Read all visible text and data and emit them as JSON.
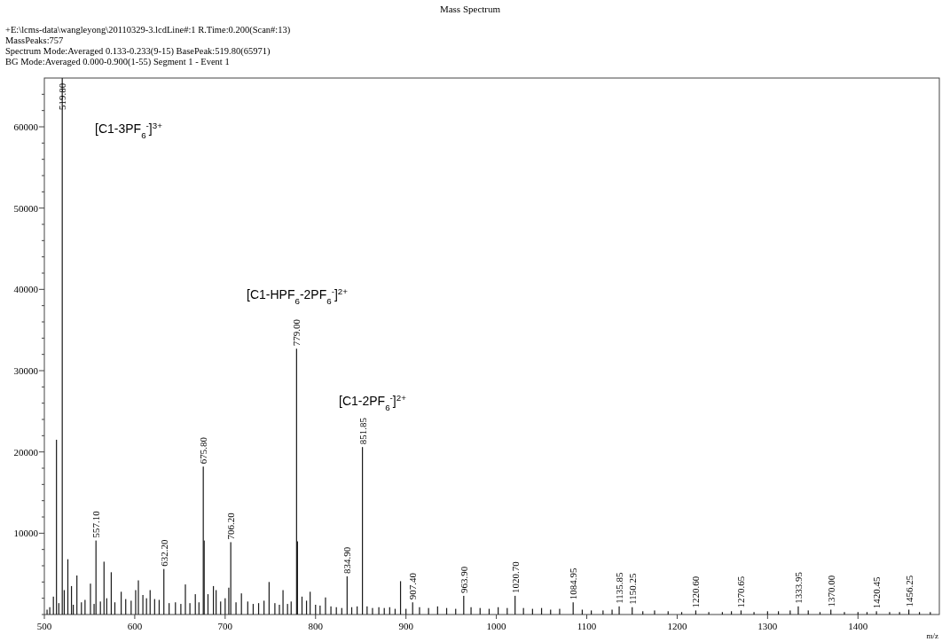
{
  "chart_data": {
    "type": "bar",
    "title": "Mass Spectrum",
    "xlabel": "m/z",
    "annotations": [
      "+E:\\lcms-data\\wangleyong\\20110329-3.lcdLine#:1   R.Time:0.200(Scan#:13)",
      "MassPeaks:757",
      "Spectrum Mode:Averaged 0.133-0.233(9-15)  BasePeak:519.80(65971)",
      "BG Mode:Averaged 0.000-0.900(1-55) Segment 1 - Event 1",
      "[C1-3PF$_{6}$$^{-}$]$^{3+}$",
      "[C1-HPF$_{6}$-2PF$_{6}$$^{-}$]$^{2+}$",
      "[C1-2PF$_{6}$$^{-}$]$^{2+}$",
      {
        "text": "519.80",
        "x": 519.8,
        "y": 66000
      },
      {
        "text": "557.10",
        "x": 557.1,
        "y": 9100
      },
      {
        "text": "632.20",
        "x": 632.2,
        "y": 5600
      },
      {
        "text": "675.80",
        "x": 675.8,
        "y": 18200
      },
      {
        "text": "706.20",
        "x": 706.2,
        "y": 8900
      },
      {
        "text": "779.00",
        "x": 779.0,
        "y": 32700
      },
      {
        "text": "834.90",
        "x": 834.9,
        "y": 4700
      },
      {
        "text": "851.85",
        "x": 851.85,
        "y": 20600
      },
      {
        "text": "907.40",
        "x": 907.4,
        "y": 1500
      },
      {
        "text": "963.90",
        "x": 963.9,
        "y": 2300
      },
      {
        "text": "1020.70",
        "x": 1020.7,
        "y": 2300
      },
      {
        "text": "1084.95",
        "x": 1084.95,
        "y": 1500
      },
      {
        "text": "1135.85",
        "x": 1135.85,
        "y": 1000
      },
      {
        "text": "1150.25",
        "x": 1150.25,
        "y": 900
      },
      {
        "text": "1220.60",
        "x": 1220.6,
        "y": 500
      },
      {
        "text": "1270.65",
        "x": 1270.65,
        "y": 500
      },
      {
        "text": "1333.95",
        "x": 1333.95,
        "y": 1000
      },
      {
        "text": "1370.00",
        "x": 1370.0,
        "y": 600
      },
      {
        "text": "1420.45",
        "x": 1420.45,
        "y": 400
      },
      {
        "text": "1456.25",
        "x": 1456.25,
        "y": 600
      }
    ],
    "x": [
      503,
      506,
      510,
      513.4,
      516,
      519.8,
      522,
      526,
      530,
      532,
      536,
      541,
      545,
      551,
      555,
      557.1,
      562,
      566,
      569,
      574,
      578,
      585,
      590,
      596,
      601,
      604,
      609,
      613,
      617,
      622,
      627,
      632.2,
      638,
      645,
      651,
      656,
      661,
      667,
      671,
      675.8,
      676.8,
      681,
      687,
      690,
      695,
      700,
      704,
      706.2,
      712,
      718,
      725,
      731,
      737,
      743,
      748.6,
      755,
      760,
      764,
      769,
      773,
      779.0,
      780,
      785,
      790,
      794,
      800,
      805,
      811,
      817,
      823,
      829,
      834.9,
      840,
      846,
      851.85,
      857,
      863,
      870,
      876,
      882,
      888,
      894,
      900,
      907.4,
      915,
      925,
      935,
      945,
      955,
      963.9,
      972,
      982,
      992,
      1002,
      1012,
      1020.7,
      1030,
      1040,
      1050,
      1060,
      1070,
      1084.95,
      1095,
      1105,
      1118,
      1128,
      1135.85,
      1150.25,
      1162,
      1175,
      1190,
      1205,
      1220.6,
      1235,
      1250,
      1260,
      1270.65,
      1285,
      1300,
      1312,
      1325,
      1333.95,
      1345,
      1358,
      1370.0,
      1385,
      1400,
      1410,
      1420.45,
      1435,
      1446,
      1456.25,
      1468,
      1480
    ],
    "values": [
      600,
      900,
      2200,
      21500,
      1400,
      66000,
      3000,
      6800,
      3500,
      1200,
      4800,
      1500,
      1800,
      3800,
      1300,
      9100,
      1600,
      6500,
      2000,
      5200,
      1500,
      2800,
      1900,
      1700,
      3000,
      4200,
      2400,
      2000,
      3000,
      1900,
      1800,
      5600,
      1400,
      1500,
      1300,
      3700,
      1400,
      2500,
      1500,
      18200,
      9100,
      2500,
      3500,
      3000,
      1600,
      2000,
      3300,
      8900,
      1500,
      2600,
      1600,
      1300,
      1400,
      1700,
      4000,
      1400,
      1200,
      3000,
      1300,
      1600,
      32700,
      9000,
      2200,
      1700,
      2800,
      1200,
      1100,
      2100,
      1000,
      900,
      800,
      4700,
      900,
      1000,
      20600,
      1000,
      800,
      900,
      800,
      900,
      700,
      4100,
      700,
      1500,
      900,
      800,
      1000,
      800,
      700,
      2300,
      900,
      800,
      700,
      900,
      800,
      2300,
      800,
      700,
      800,
      600,
      700,
      1500,
      600,
      500,
      500,
      600,
      1000,
      900,
      400,
      500,
      400,
      300,
      500,
      300,
      300,
      400,
      500,
      300,
      400,
      400,
      500,
      1000,
      500,
      300,
      600,
      300,
      300,
      300,
      400,
      300,
      300,
      600,
      300,
      300
    ],
    "color": "#1a1a1a",
    "xlim": [
      500,
      1490
    ],
    "xticks": [
      500,
      600,
      700,
      800,
      900,
      1000,
      1100,
      1200,
      1300,
      1400
    ],
    "ylim": [
      0,
      66000
    ],
    "yticks": [
      {
        "value": 0,
        "label": null
      },
      {
        "value": 2000,
        "label": null
      },
      {
        "value": 4000,
        "label": null
      },
      {
        "value": 6000,
        "label": null
      },
      {
        "value": 8000,
        "label": null
      },
      10000,
      {
        "value": 12000,
        "label": null
      },
      {
        "value": 14000,
        "label": null
      },
      {
        "value": 16000,
        "label": null
      },
      {
        "value": 18000,
        "label": null
      },
      20000,
      {
        "value": 22000,
        "label": null
      },
      {
        "value": 24000,
        "label": null
      },
      {
        "value": 26000,
        "label": null
      },
      {
        "value": 28000,
        "label": null
      },
      30000,
      {
        "value": 32000,
        "label": null
      },
      {
        "value": 34000,
        "label": null
      },
      {
        "value": 36000,
        "label": null
      },
      {
        "value": 38000,
        "label": null
      },
      40000,
      {
        "value": 42000,
        "label": null
      },
      {
        "value": 44000,
        "label": null
      },
      {
        "value": 46000,
        "label": null
      },
      {
        "value": 48000,
        "label": null
      },
      50000,
      {
        "value": 52000,
        "label": null
      },
      {
        "value": 54000,
        "label": null
      },
      {
        "value": 56000,
        "label": null
      },
      {
        "value": 58000,
        "label": null
      },
      60000,
      {
        "value": 62000,
        "label": null
      },
      {
        "value": 64000,
        "label": null
      }
    ],
    "grid": false
  }
}
